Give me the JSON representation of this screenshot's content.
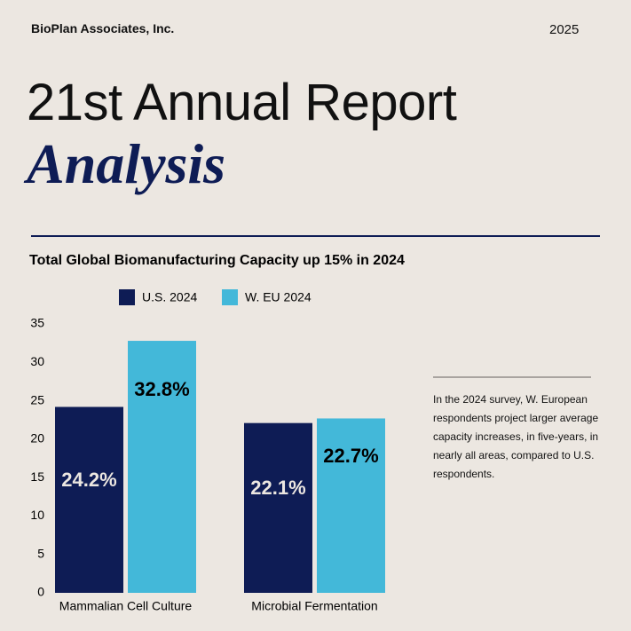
{
  "header": {
    "company": "BioPlan Associates, Inc.",
    "year": "2025"
  },
  "title": {
    "line1": "21st Annual Report",
    "line2": "Analysis"
  },
  "note": "In the 2024 survey, W. European respondents project larger average capacity increases, in five-years, in nearly all areas, compared to U.S. respondents.",
  "chart_data": {
    "type": "bar",
    "title": "Total Global Biomanufacturing Capacity up 15% in 2024",
    "categories": [
      "Mammalian Cell Culture",
      "Microbial Fermentation"
    ],
    "series": [
      {
        "name": "U.S. 2024",
        "color": "#0e1c55",
        "values": [
          24.2,
          22.1
        ],
        "value_labels": [
          "24.2%",
          "22.1%"
        ]
      },
      {
        "name": "W. EU 2024",
        "color": "#43b8d9",
        "values": [
          32.8,
          22.7
        ],
        "value_labels": [
          "32.8%",
          "22.7%"
        ]
      }
    ],
    "ylim": [
      0,
      35
    ],
    "yticks": [
      0,
      5,
      10,
      15,
      20,
      25,
      30,
      35
    ],
    "grid": false
  }
}
